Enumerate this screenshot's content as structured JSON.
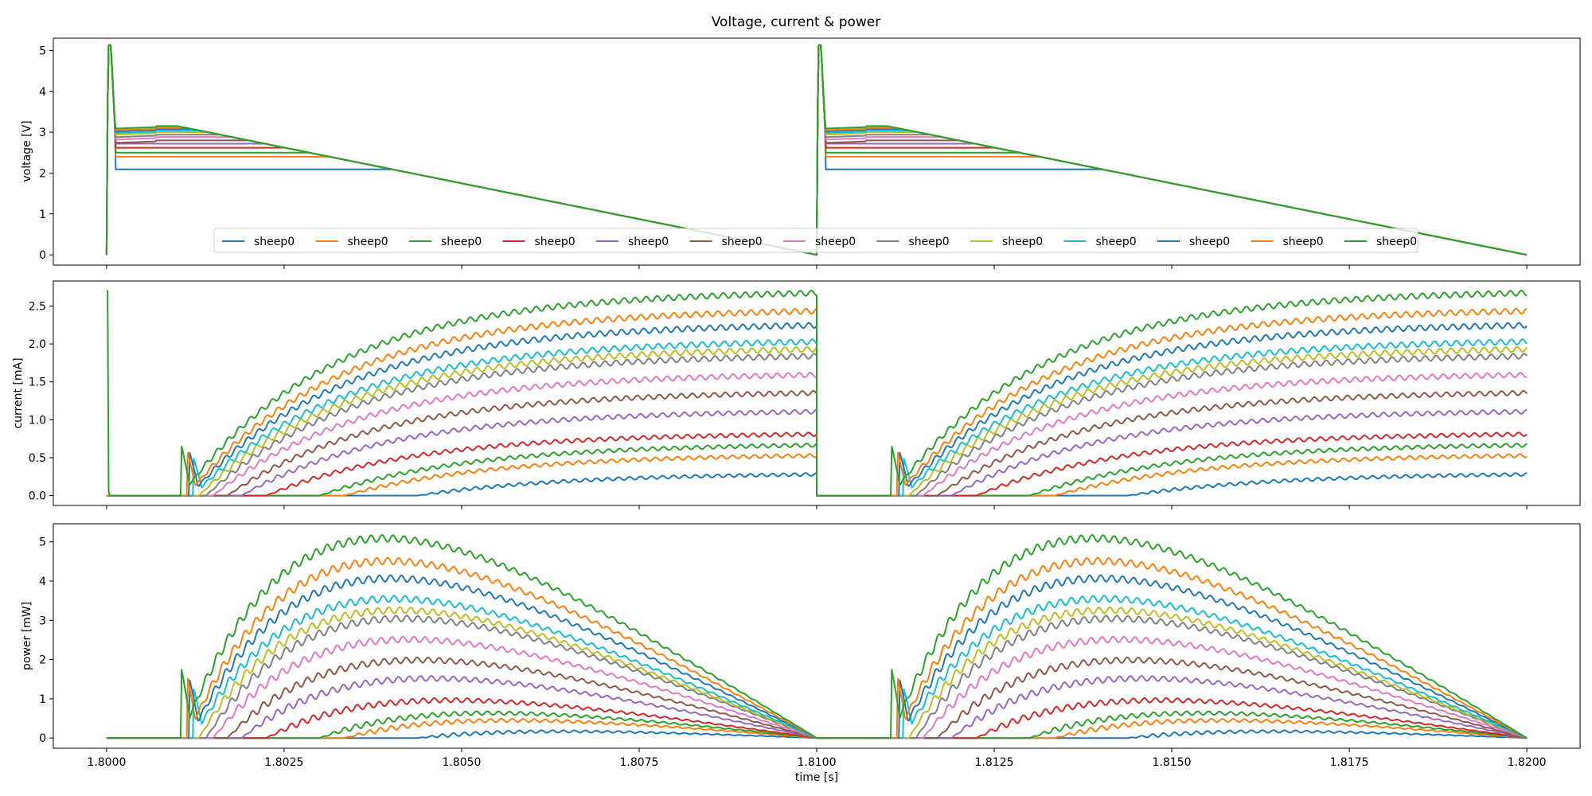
{
  "figure": {
    "title": "Voltage, current & power",
    "xlabel": "time [s]"
  },
  "chart_data": [
    {
      "type": "line",
      "panel": "voltage",
      "title": "",
      "ylabel": "voltage [V]",
      "xlabel": "",
      "xlim": [
        1.79925,
        1.82075
      ],
      "ylim": [
        -0.25,
        5.3
      ],
      "yticks": [
        0,
        1,
        2,
        3,
        4,
        5
      ],
      "xticks": [
        1.8,
        1.8025,
        1.805,
        1.8075,
        1.81,
        1.8125,
        1.815,
        1.8175,
        1.82
      ],
      "grid": false,
      "legend": {
        "placement": "lower-center",
        "ncol": 13
      },
      "periods": [
        1.8,
        1.81
      ],
      "period_length": 0.01,
      "initial_spike": {
        "peak": 5.13,
        "duration": 5e-05
      },
      "ramp": {
        "start": 3.15,
        "end": 0.0,
        "start_offset": 0.001,
        "end_offset": 0.01
      },
      "series": [
        {
          "name": "sheep0",
          "color": "#1f77b4",
          "plateau": 2.09
        },
        {
          "name": "sheep0",
          "color": "#ff7f0e",
          "plateau": 2.4
        },
        {
          "name": "sheep0",
          "color": "#2ca02c",
          "plateau": 2.5
        },
        {
          "name": "sheep0",
          "color": "#d62728",
          "plateau": 2.62
        },
        {
          "name": "sheep0",
          "color": "#9467bd",
          "plateau": 2.72
        },
        {
          "name": "sheep0",
          "color": "#8c564b",
          "plateau": 2.8
        },
        {
          "name": "sheep0",
          "color": "#e377c2",
          "plateau": 2.88
        },
        {
          "name": "sheep0",
          "color": "#7f7f7f",
          "plateau": 2.94
        },
        {
          "name": "sheep0",
          "color": "#bcbd22",
          "plateau": 3.0
        },
        {
          "name": "sheep0",
          "color": "#17becf",
          "plateau": 3.04
        },
        {
          "name": "sheep0",
          "color": "#1f77b4",
          "plateau": 3.08
        },
        {
          "name": "sheep0",
          "color": "#ff7f0e",
          "plateau": 3.11
        },
        {
          "name": "sheep0",
          "color": "#2ca02c",
          "plateau": 3.15
        }
      ]
    },
    {
      "type": "line",
      "panel": "current",
      "title": "",
      "ylabel": "current [mA]",
      "xlabel": "",
      "xlim": [
        1.79925,
        1.82075
      ],
      "ylim": [
        -0.13,
        2.83
      ],
      "yticks": [
        0.0,
        0.5,
        1.0,
        1.5,
        2.0,
        2.5
      ],
      "yticklabels": [
        "0.0",
        "0.5",
        "1.0",
        "1.5",
        "2.0",
        "2.5"
      ],
      "xticks": [
        1.8,
        1.8025,
        1.805,
        1.8075,
        1.81,
        1.8125,
        1.815,
        1.8175,
        1.82
      ],
      "grid": false,
      "initial_spike": 2.7,
      "series": [
        {
          "name": "sheep0",
          "color": "#1f77b4",
          "onset": 1.80438,
          "final": 0.3
        },
        {
          "name": "sheep0",
          "color": "#ff7f0e",
          "onset": 1.80335,
          "final": 0.55
        },
        {
          "name": "sheep0",
          "color": "#2ca02c",
          "onset": 1.803,
          "final": 0.69
        },
        {
          "name": "sheep0",
          "color": "#d62728",
          "onset": 1.80225,
          "final": 0.83
        },
        {
          "name": "sheep0",
          "color": "#9467bd",
          "onset": 1.8019,
          "final": 1.13
        },
        {
          "name": "sheep0",
          "color": "#8c564b",
          "onset": 1.8017,
          "final": 1.38
        },
        {
          "name": "sheep0",
          "color": "#e377c2",
          "onset": 1.8015,
          "final": 1.62
        },
        {
          "name": "sheep0",
          "color": "#7f7f7f",
          "onset": 1.8014,
          "final": 1.87
        },
        {
          "name": "sheep0",
          "color": "#bcbd22",
          "onset": 1.8013,
          "final": 1.96
        },
        {
          "name": "sheep0",
          "color": "#17becf",
          "onset": 1.80122,
          "final": 2.06
        },
        {
          "name": "sheep0",
          "color": "#1f77b4",
          "onset": 1.80117,
          "final": 2.28
        },
        {
          "name": "sheep0",
          "color": "#ff7f0e",
          "onset": 1.80113,
          "final": 2.47
        },
        {
          "name": "sheep0",
          "color": "#2ca02c",
          "onset": 1.80105,
          "final": 2.71
        }
      ]
    },
    {
      "type": "line",
      "panel": "power",
      "title": "",
      "ylabel": "power [mW]",
      "xlabel": "time [s]",
      "xlim": [
        1.79925,
        1.82075
      ],
      "ylim": [
        -0.26,
        5.46
      ],
      "yticks": [
        0,
        1,
        2,
        3,
        4,
        5
      ],
      "xticks": [
        1.8,
        1.8025,
        1.805,
        1.8075,
        1.81,
        1.8125,
        1.815,
        1.8175,
        1.82
      ],
      "xticklabels": [
        "1.8000",
        "1.8025",
        "1.8050",
        "1.8075",
        "1.8100",
        "1.8125",
        "1.8150",
        "1.8175",
        "1.8200"
      ],
      "grid": false,
      "series": [
        {
          "name": "sheep0",
          "color": "#1f77b4",
          "peak": 0.35
        },
        {
          "name": "sheep0",
          "color": "#ff7f0e",
          "peak": 0.72
        },
        {
          "name": "sheep0",
          "color": "#2ca02c",
          "peak": 0.94
        },
        {
          "name": "sheep0",
          "color": "#d62728",
          "peak": 1.22
        },
        {
          "name": "sheep0",
          "color": "#9467bd",
          "peak": 1.8
        },
        {
          "name": "sheep0",
          "color": "#8c564b",
          "peak": 2.27
        },
        {
          "name": "sheep0",
          "color": "#e377c2",
          "peak": 2.77
        },
        {
          "name": "sheep0",
          "color": "#7f7f7f",
          "peak": 3.3
        },
        {
          "name": "sheep0",
          "color": "#bcbd22",
          "peak": 3.47
        },
        {
          "name": "sheep0",
          "color": "#17becf",
          "peak": 3.73
        },
        {
          "name": "sheep0",
          "color": "#1f77b4",
          "peak": 4.24
        },
        {
          "name": "sheep0",
          "color": "#ff7f0e",
          "peak": 4.67
        },
        {
          "name": "sheep0",
          "color": "#2ca02c",
          "peak": 5.2
        }
      ]
    }
  ]
}
